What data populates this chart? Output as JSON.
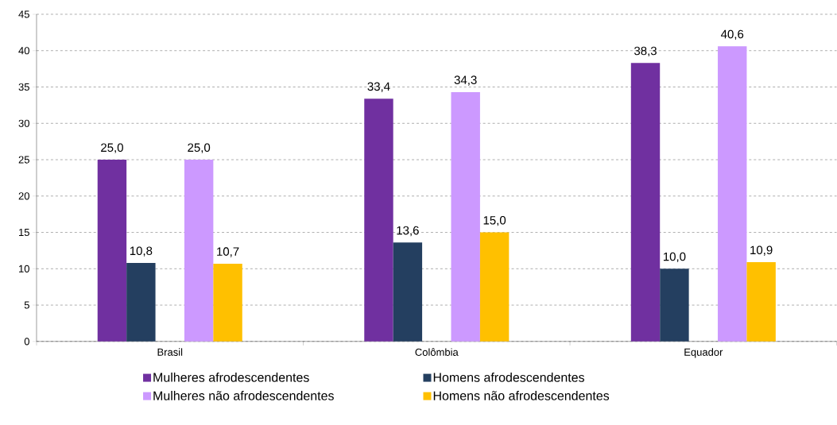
{
  "chart_data": {
    "type": "bar",
    "categories": [
      "Brasil",
      "Colômbia",
      "Equador"
    ],
    "series": [
      {
        "name": "Mulheres afrodescendentes",
        "color": "#7030a0",
        "values": [
          25.0,
          33.4,
          38.3
        ],
        "value_labels": [
          "25,0",
          "33,4",
          "38,3"
        ]
      },
      {
        "name": "Homens afrodescendentes",
        "color": "#243f60",
        "values": [
          10.8,
          13.6,
          10.0
        ],
        "value_labels": [
          "10,8",
          "13,6",
          "10,0"
        ]
      },
      {
        "name": "Mulheres não afrodescendentes",
        "color": "#cc99ff",
        "values": [
          25.0,
          34.3,
          40.6
        ],
        "value_labels": [
          "25,0",
          "34,3",
          "40,6"
        ]
      },
      {
        "name": "Homens não afrodescendentes",
        "color": "#ffc000",
        "values": [
          10.7,
          15.0,
          10.9
        ],
        "value_labels": [
          "10,7",
          "15,0",
          "10,9"
        ]
      }
    ],
    "ylim": [
      0,
      45
    ],
    "yticks": [
      0,
      5,
      10,
      15,
      20,
      25,
      30,
      35,
      40,
      45
    ],
    "grid": "y",
    "legend": "bottom"
  }
}
